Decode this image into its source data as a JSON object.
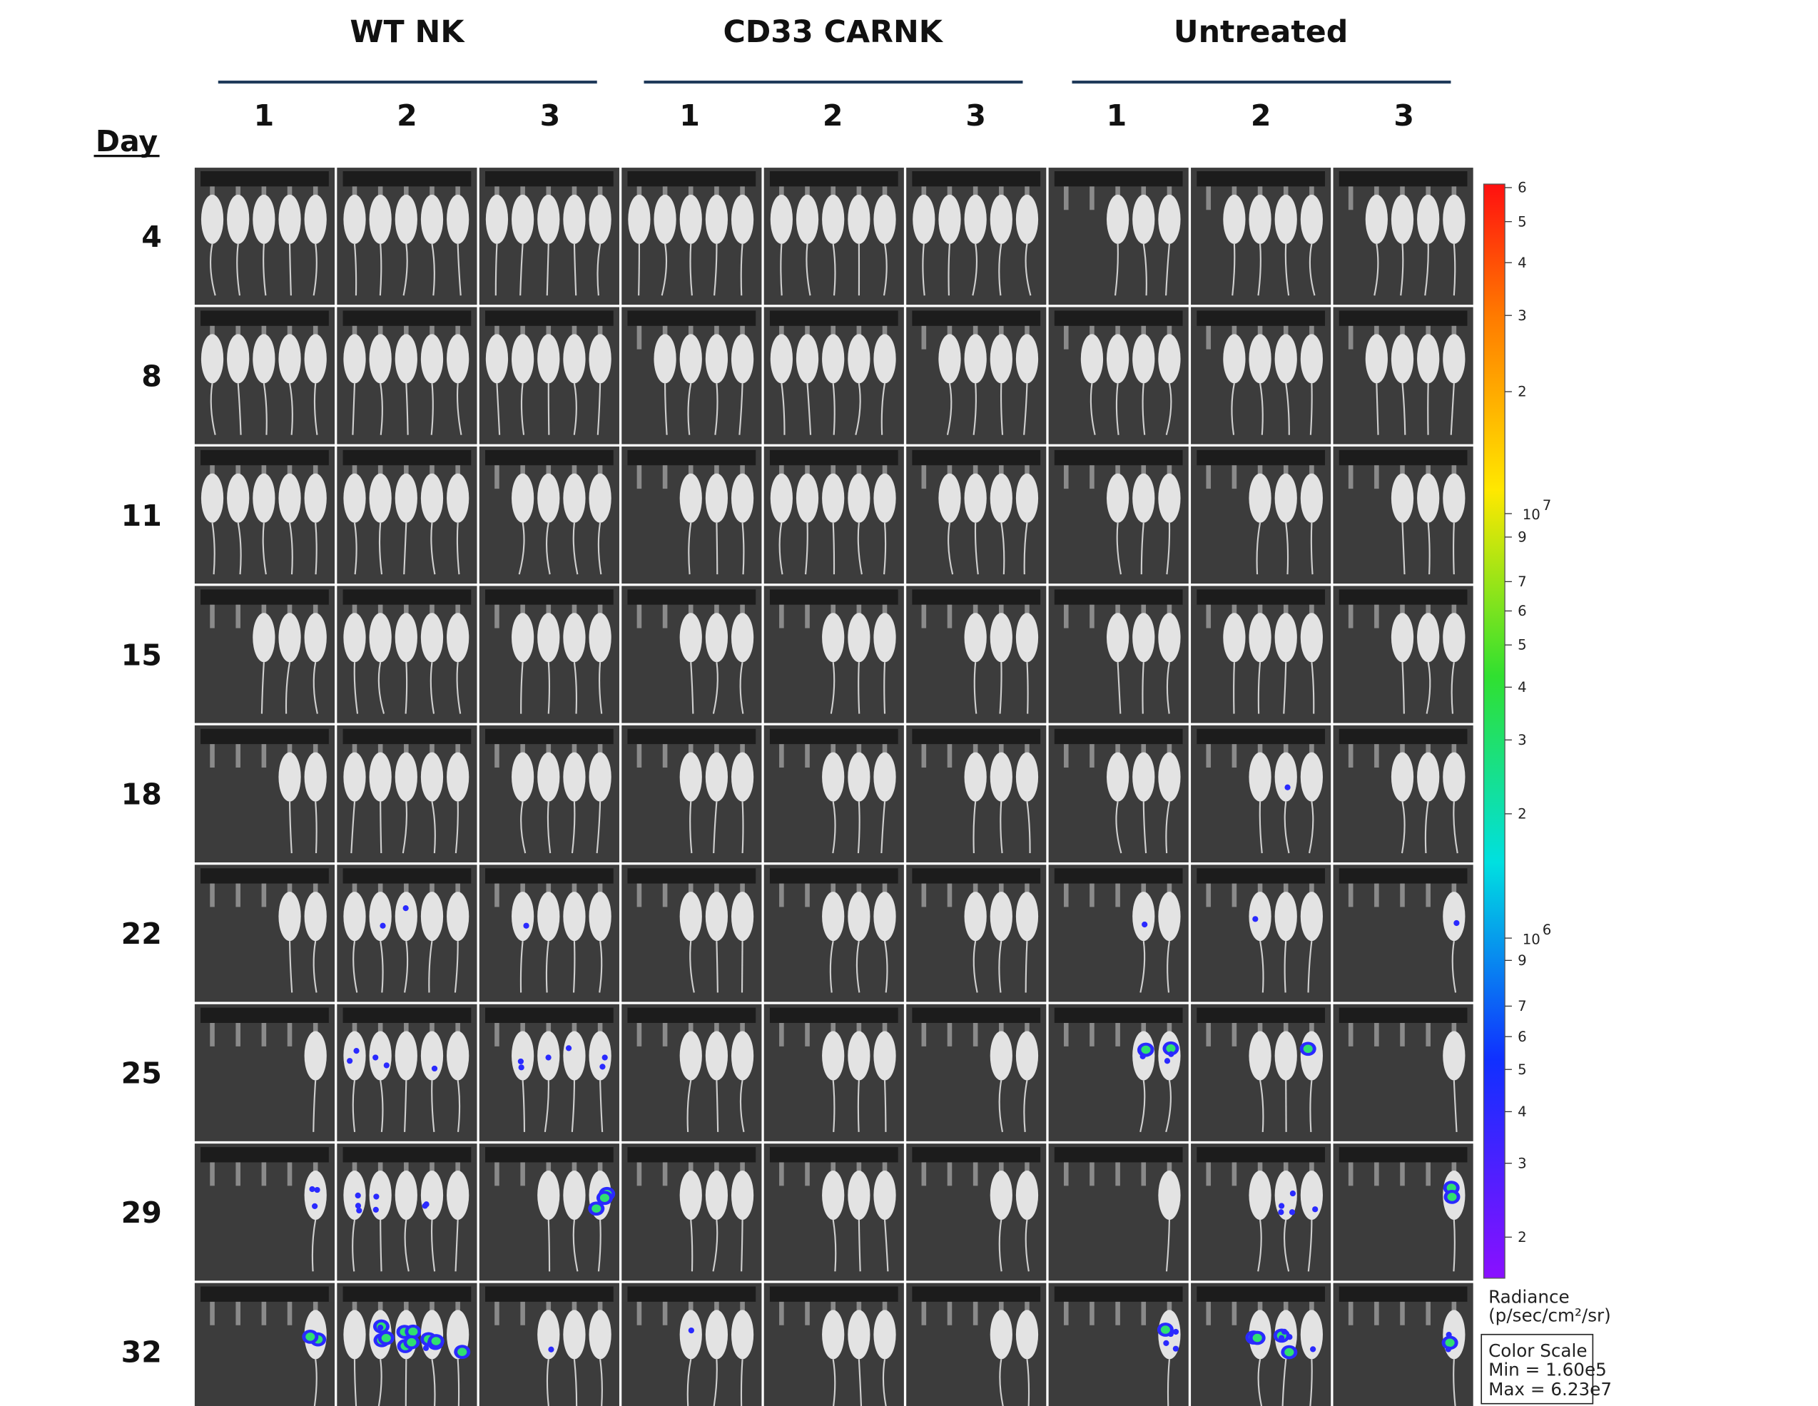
{
  "header": {
    "groups": [
      {
        "label": "WT NK",
        "columns": [
          "1",
          "2",
          "3"
        ]
      },
      {
        "label": "CD33 CARNK",
        "columns": [
          "1",
          "2",
          "3"
        ]
      },
      {
        "label": "Untreated",
        "columns": [
          "1",
          "2",
          "3"
        ]
      }
    ]
  },
  "rows": {
    "label": "Day",
    "days": [
      "4",
      "8",
      "11",
      "15",
      "18",
      "22",
      "25",
      "29",
      "32"
    ]
  },
  "color_scale": {
    "ticks": [
      "6",
      "5",
      "4",
      "3",
      "2",
      {
        "label": "10",
        "exponent": "7"
      },
      "9",
      "7",
      "6",
      "5",
      "4",
      "3",
      "2",
      {
        "label": "10",
        "exponent": "6"
      },
      "9",
      "7",
      "6",
      "5",
      "4",
      "3",
      "2"
    ],
    "unit_label": "Radiance",
    "unit": "(p/sec/cm²/sr)",
    "box": {
      "title": "Color Scale",
      "min": "Min = 1.60e5",
      "max": "Max = 6.23e7"
    }
  }
}
